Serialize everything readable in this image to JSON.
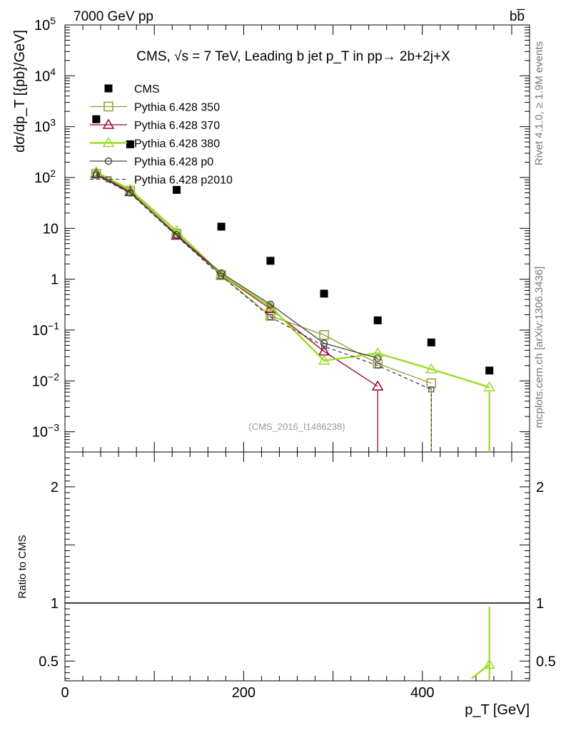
{
  "header": {
    "energy_label": "7000 GeV pp",
    "process_label": "bb̅",
    "side_label_rivet": "Rivet 4.1.0, ≥ 1.9M events",
    "side_label_mcplots": "mcplots.cern.ch [arXiv:1306.3436]"
  },
  "chart_data": {
    "type": "scatter",
    "title": "CMS, √s = 7 TeV, Leading b jet p_T in pp→ 2b+2j+X",
    "analysis_id": "(CMS_2016_I1486238)",
    "xlabel": "p_T [GeV]",
    "ylabel": "dσ/dp_T [{pb}/GeV]",
    "ratio_ylabel": "Ratio to CMS",
    "xlim": [
      0,
      520
    ],
    "ylim": [
      0.0004,
      100000
    ],
    "yscale": "log",
    "ratio_ylim": [
      0.33,
      2.3
    ],
    "x_ticks": [
      "0",
      "200",
      "400"
    ],
    "y_ticks": [
      "10^-3",
      "10^-2",
      "10^-1",
      "1",
      "10",
      "10^2",
      "10^3",
      "10^4",
      "10^5"
    ],
    "ratio_ticks": [
      "0.5",
      "1",
      "2"
    ],
    "x": [
      35,
      73,
      125,
      175,
      230,
      290,
      350,
      410,
      475
    ],
    "legend_position": "top-left",
    "series": [
      {
        "name": "CMS",
        "color": "#000000",
        "marker": "filled-square",
        "values": [
          1400,
          450,
          57,
          10.8,
          2.3,
          0.52,
          0.155,
          0.057,
          0.016
        ]
      },
      {
        "name": "Pythia 6.428 350",
        "color": "#999933",
        "marker": "open-square",
        "values": [
          118,
          55,
          7.8,
          1.2,
          0.19,
          0.08,
          0.022,
          0.009,
          null
        ]
      },
      {
        "name": "Pythia 6.428 370",
        "color": "#990033",
        "marker": "open-triangle",
        "values": [
          120,
          52,
          7.2,
          1.22,
          0.26,
          0.038,
          0.0078,
          null,
          null
        ]
      },
      {
        "name": "Pythia 6.428 380",
        "color": "#99dd22",
        "marker": "open-triangle",
        "values": [
          128,
          58,
          8.8,
          1.25,
          0.29,
          0.025,
          0.035,
          0.017,
          0.0075
        ]
      },
      {
        "name": "Pythia 6.428 p0",
        "color": "#444444",
        "marker": "open-circle",
        "values": [
          115,
          50,
          7.5,
          1.32,
          0.32,
          0.055,
          0.028,
          null,
          null
        ]
      },
      {
        "name": "Pythia 6.428 p2010",
        "color": "#444444",
        "marker": "small-square",
        "dashed": true,
        "values": [
          110,
          49,
          7.0,
          1.15,
          0.18,
          0.048,
          0.02,
          0.0068,
          null
        ]
      }
    ],
    "ratio_series": [
      {
        "name": "Pythia 6.428 380",
        "color": "#99dd22",
        "x": [
          455,
          475
        ],
        "values": [
          0.35,
          0.47
        ],
        "err_high": [
          null,
          0.97
        ]
      }
    ]
  }
}
